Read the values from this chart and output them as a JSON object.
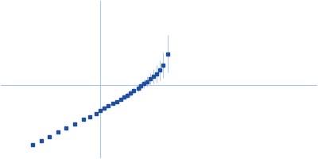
{
  "title": "",
  "xlabel": "",
  "ylabel": "",
  "background_color": "#ffffff",
  "axes_color": "#aac8e8",
  "data_color": "#1f4e9e",
  "marker_size": 2.5,
  "linewidth": 0.7,
  "figsize": [
    4.0,
    2.0
  ],
  "dpi": 100,
  "x_data": [
    -0.6,
    -0.56,
    -0.52,
    -0.48,
    -0.44,
    -0.4,
    -0.36,
    -0.33,
    -0.3,
    -0.28,
    -0.26,
    -0.24,
    -0.22,
    -0.2,
    -0.18,
    -0.165,
    -0.15,
    -0.135,
    -0.12,
    -0.1,
    -0.085,
    -0.07,
    -0.055,
    -0.04,
    -0.025,
    -0.01,
    0.005,
    0.02,
    0.04
  ],
  "y_data": [
    -0.46,
    -0.43,
    -0.4,
    -0.37,
    -0.34,
    -0.31,
    -0.28,
    -0.26,
    -0.24,
    -0.22,
    -0.2,
    -0.185,
    -0.17,
    -0.155,
    -0.14,
    -0.125,
    -0.11,
    -0.095,
    -0.08,
    -0.06,
    -0.045,
    -0.03,
    -0.015,
    0.005,
    0.02,
    0.04,
    0.065,
    0.1,
    0.18
  ],
  "y_err": [
    0.0,
    0.0,
    0.0,
    0.0,
    0.0,
    0.0,
    0.0,
    0.0,
    0.0,
    0.0,
    0.0,
    0.0,
    0.0,
    0.0,
    0.0,
    0.015,
    0.018,
    0.02,
    0.022,
    0.025,
    0.028,
    0.032,
    0.036,
    0.04,
    0.05,
    0.06,
    0.07,
    0.09,
    0.13
  ],
  "xlim": [
    -0.75,
    0.75
  ],
  "ylim": [
    -0.55,
    0.55
  ],
  "vline_x": -0.28,
  "hline_y": -0.04
}
